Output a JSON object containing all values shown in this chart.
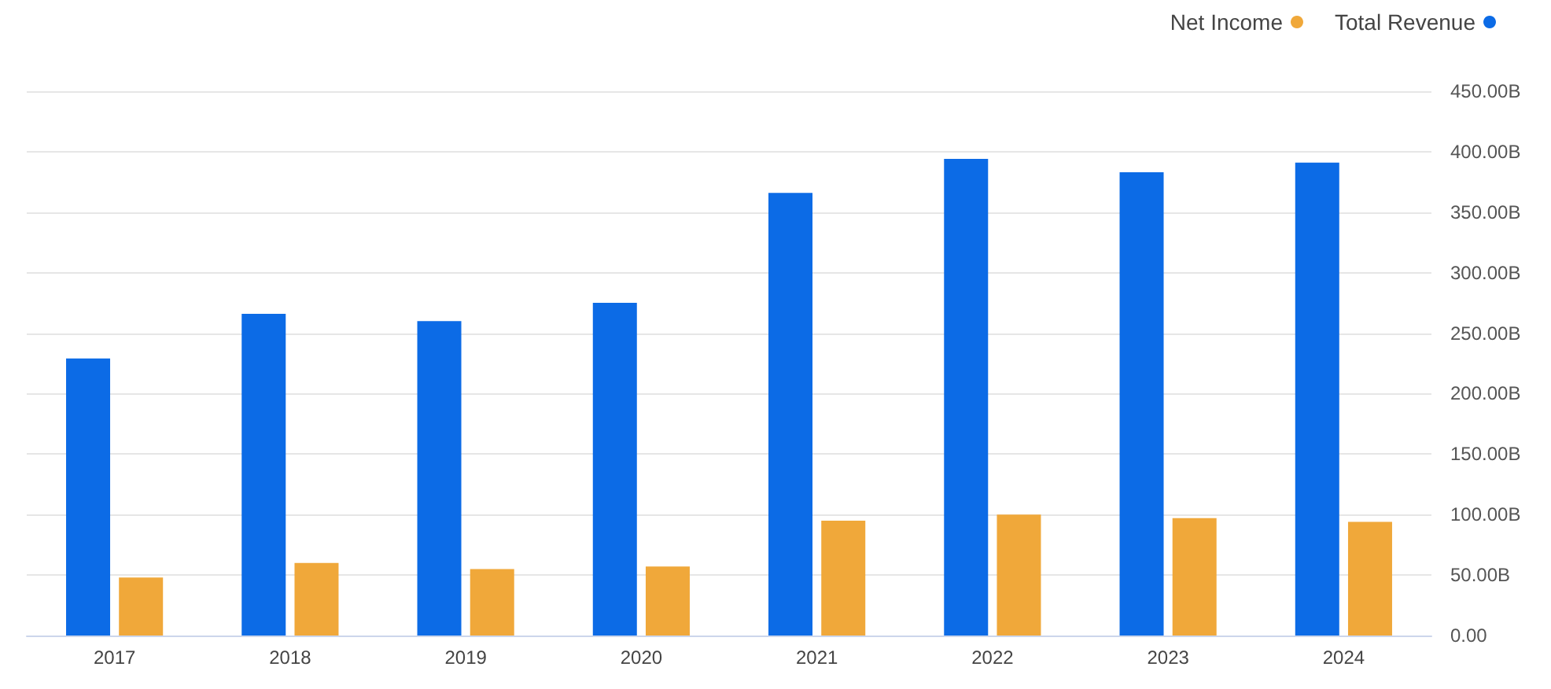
{
  "chart_data": {
    "type": "bar",
    "categories": [
      "2017",
      "2018",
      "2019",
      "2020",
      "2021",
      "2022",
      "2023",
      "2024"
    ],
    "series": [
      {
        "name": "Total Revenue",
        "color": "#0c6be6",
        "values": [
          229,
          266,
          260,
          275,
          366,
          394,
          383,
          391
        ]
      },
      {
        "name": "Net Income",
        "color": "#f0a83a",
        "values": [
          48,
          60,
          55,
          57,
          95,
          100,
          97,
          94
        ]
      }
    ],
    "ylim": [
      0,
      450
    ],
    "yticks": [
      {
        "value": 0,
        "label": "0.00"
      },
      {
        "value": 50,
        "label": "50.00B"
      },
      {
        "value": 100,
        "label": "100.00B"
      },
      {
        "value": 150,
        "label": "150.00B"
      },
      {
        "value": 200,
        "label": "200.00B"
      },
      {
        "value": 250,
        "label": "250.00B"
      },
      {
        "value": 300,
        "label": "300.00B"
      },
      {
        "value": 350,
        "label": "350.00B"
      },
      {
        "value": 400,
        "label": "400.00B"
      },
      {
        "value": 450,
        "label": "450.00B"
      }
    ],
    "grid": "y",
    "legend": "top right"
  }
}
